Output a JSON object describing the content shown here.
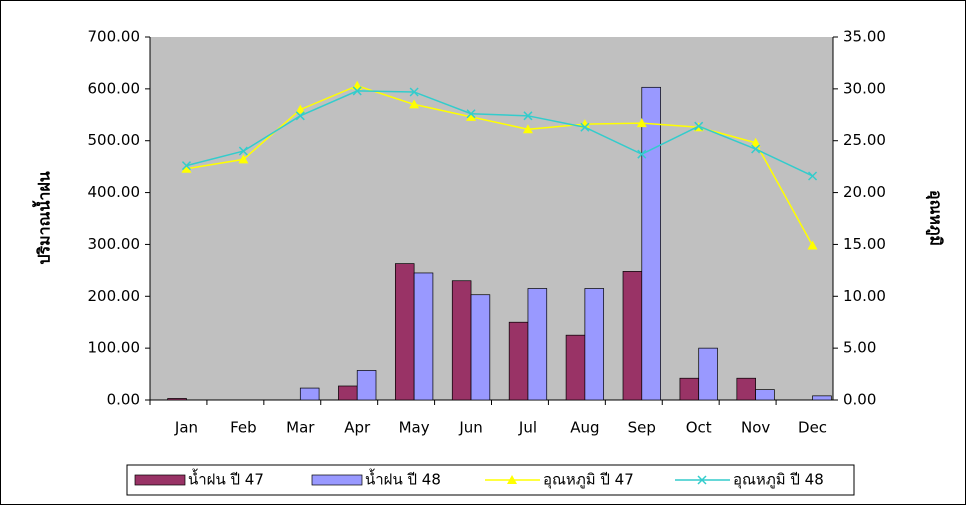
{
  "chart_data": {
    "type": "combo",
    "categories": [
      "Jan",
      "Feb",
      "Mar",
      "Apr",
      "May",
      "Jun",
      "Jul",
      "Aug",
      "Sep",
      "Oct",
      "Nov",
      "Dec"
    ],
    "y_label": "ปริมาณน้ำฝน",
    "y2_label": "อุณหภูมิ",
    "ylim": [
      0,
      700
    ],
    "yticks": [
      {
        "value": 0,
        "label": "0.00"
      },
      {
        "value": 100,
        "label": "100.00"
      },
      {
        "value": 200,
        "label": "200.00"
      },
      {
        "value": 300,
        "label": "300.00"
      },
      {
        "value": 400,
        "label": "400.00"
      },
      {
        "value": 500,
        "label": "500.00"
      },
      {
        "value": 600,
        "label": "600.00"
      },
      {
        "value": 700,
        "label": "700.00"
      }
    ],
    "y2lim": [
      0,
      35
    ],
    "y2ticks": [
      {
        "value": 0,
        "label": "0.00"
      },
      {
        "value": 5,
        "label": "5.00"
      },
      {
        "value": 10,
        "label": "10.00"
      },
      {
        "value": 15,
        "label": "15.00"
      },
      {
        "value": 20,
        "label": "20.00"
      },
      {
        "value": 25,
        "label": "25.00"
      },
      {
        "value": 30,
        "label": "30.00"
      },
      {
        "value": 35,
        "label": "35.00"
      }
    ],
    "series": [
      {
        "name": "น้ำฝน ปี 47",
        "type": "bar",
        "color": "#993366",
        "values": [
          3,
          0,
          0,
          27,
          263,
          230,
          150,
          125,
          248,
          42,
          42,
          0
        ]
      },
      {
        "name": "น้ำฝน ปี 48",
        "type": "bar",
        "color": "#9999ff",
        "values": [
          0,
          0,
          23,
          57,
          245,
          203,
          215,
          215,
          603,
          100,
          20,
          8
        ]
      },
      {
        "name": "อุณหภูมิ ปี 47",
        "type": "line",
        "marker": "triangle",
        "axis": "y2",
        "color": "#ffff00",
        "values": [
          22.3,
          23.2,
          28.0,
          30.3,
          28.5,
          27.3,
          26.1,
          26.6,
          26.7,
          26.3,
          24.8,
          14.9
        ]
      },
      {
        "name": "อุณหภูมิ ปี 48",
        "type": "line",
        "marker": "x",
        "axis": "y2",
        "color": "#33cccc",
        "values": [
          22.6,
          24.0,
          27.4,
          29.8,
          29.7,
          27.6,
          27.4,
          26.3,
          23.7,
          26.4,
          24.2,
          21.6
        ]
      }
    ]
  }
}
